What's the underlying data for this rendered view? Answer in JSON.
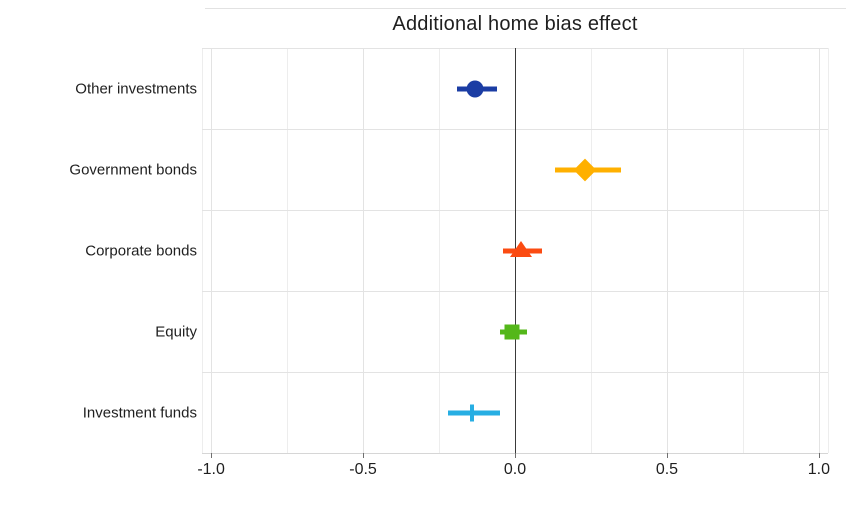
{
  "chart_data": {
    "type": "scatter",
    "subtype": "coefficient-dot-plot-with-error-bars",
    "title": "Additional home bias effect",
    "orientation": "horizontal",
    "xlabel": "",
    "ylabel": "",
    "categories": [
      "Other investments",
      "Government bonds",
      "Corporate bonds",
      "Equity",
      "Investment funds"
    ],
    "series": [
      {
        "name": "Additional home bias effect",
        "points": [
          {
            "category": "Other investments",
            "estimate": -0.13,
            "ci_low": -0.19,
            "ci_high": -0.06,
            "marker": "circle",
            "color": "#1B3DA4"
          },
          {
            "category": "Government bonds",
            "estimate": 0.23,
            "ci_low": 0.13,
            "ci_high": 0.35,
            "marker": "diamond",
            "color": "#FFB000"
          },
          {
            "category": "Corporate bonds",
            "estimate": 0.02,
            "ci_low": -0.04,
            "ci_high": 0.09,
            "marker": "triangle",
            "color": "#FB4B12"
          },
          {
            "category": "Equity",
            "estimate": -0.01,
            "ci_low": -0.05,
            "ci_high": 0.04,
            "marker": "square",
            "color": "#54B71A"
          },
          {
            "category": "Investment funds",
            "estimate": -0.14,
            "ci_low": -0.22,
            "ci_high": -0.05,
            "marker": "plus",
            "color": "#27AEE3"
          }
        ]
      }
    ],
    "xlim": [
      -1.03,
      1.03
    ],
    "x_tick_labels": [
      "-1.0",
      "-0.5",
      "0.0",
      "0.5",
      "1.0"
    ],
    "x_tick_values": [
      -1.0,
      -0.5,
      0.0,
      0.5,
      1.0
    ],
    "x_minor_tick_values": [
      -0.75,
      -0.25,
      0.25,
      0.75
    ],
    "zero_reference_line": 0.0,
    "grid": "on",
    "legend": "none",
    "colors": {
      "background": "#ffffff",
      "grid_major": "#e3e3e3",
      "grid_minor": "#ededed",
      "axis_line": "#d6d6d6",
      "zero_line": "#3a3a3a",
      "tick": "#6f6f6f",
      "text": "#1f1f1f"
    }
  }
}
